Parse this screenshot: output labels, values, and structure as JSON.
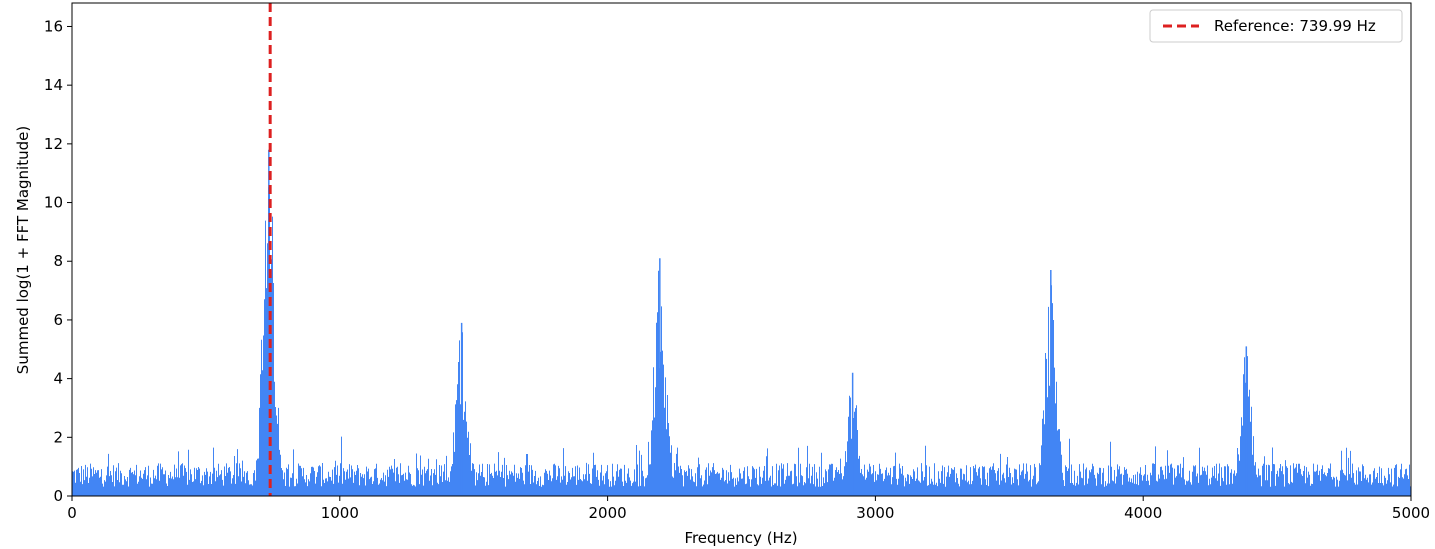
{
  "chart_data": {
    "type": "bar",
    "title": "",
    "xlabel": "Frequency (Hz)",
    "ylabel": "Summed log(1 + FFT Magnitude)",
    "xlim": [
      0,
      5000
    ],
    "ylim": [
      0,
      16.8
    ],
    "xticks": [
      0,
      1000,
      2000,
      3000,
      4000,
      5000
    ],
    "yticks": [
      0,
      2,
      4,
      6,
      8,
      10,
      12,
      14,
      16
    ],
    "grid": false,
    "legend_position": "top-right",
    "series": [
      {
        "type": "bar",
        "color": "#4285f4",
        "baseline_level": 0.9,
        "peaks": [
          {
            "x": 735,
            "y": 11.8
          },
          {
            "x": 1455,
            "y": 5.9
          },
          {
            "x": 2195,
            "y": 8.1
          },
          {
            "x": 2915,
            "y": 4.2
          },
          {
            "x": 3655,
            "y": 7.7
          },
          {
            "x": 4385,
            "y": 5.1
          }
        ]
      }
    ],
    "reference_line": {
      "x": 739.99,
      "label": "Reference: 739.99 Hz",
      "color": "#dd2020",
      "style": "dashed"
    }
  }
}
